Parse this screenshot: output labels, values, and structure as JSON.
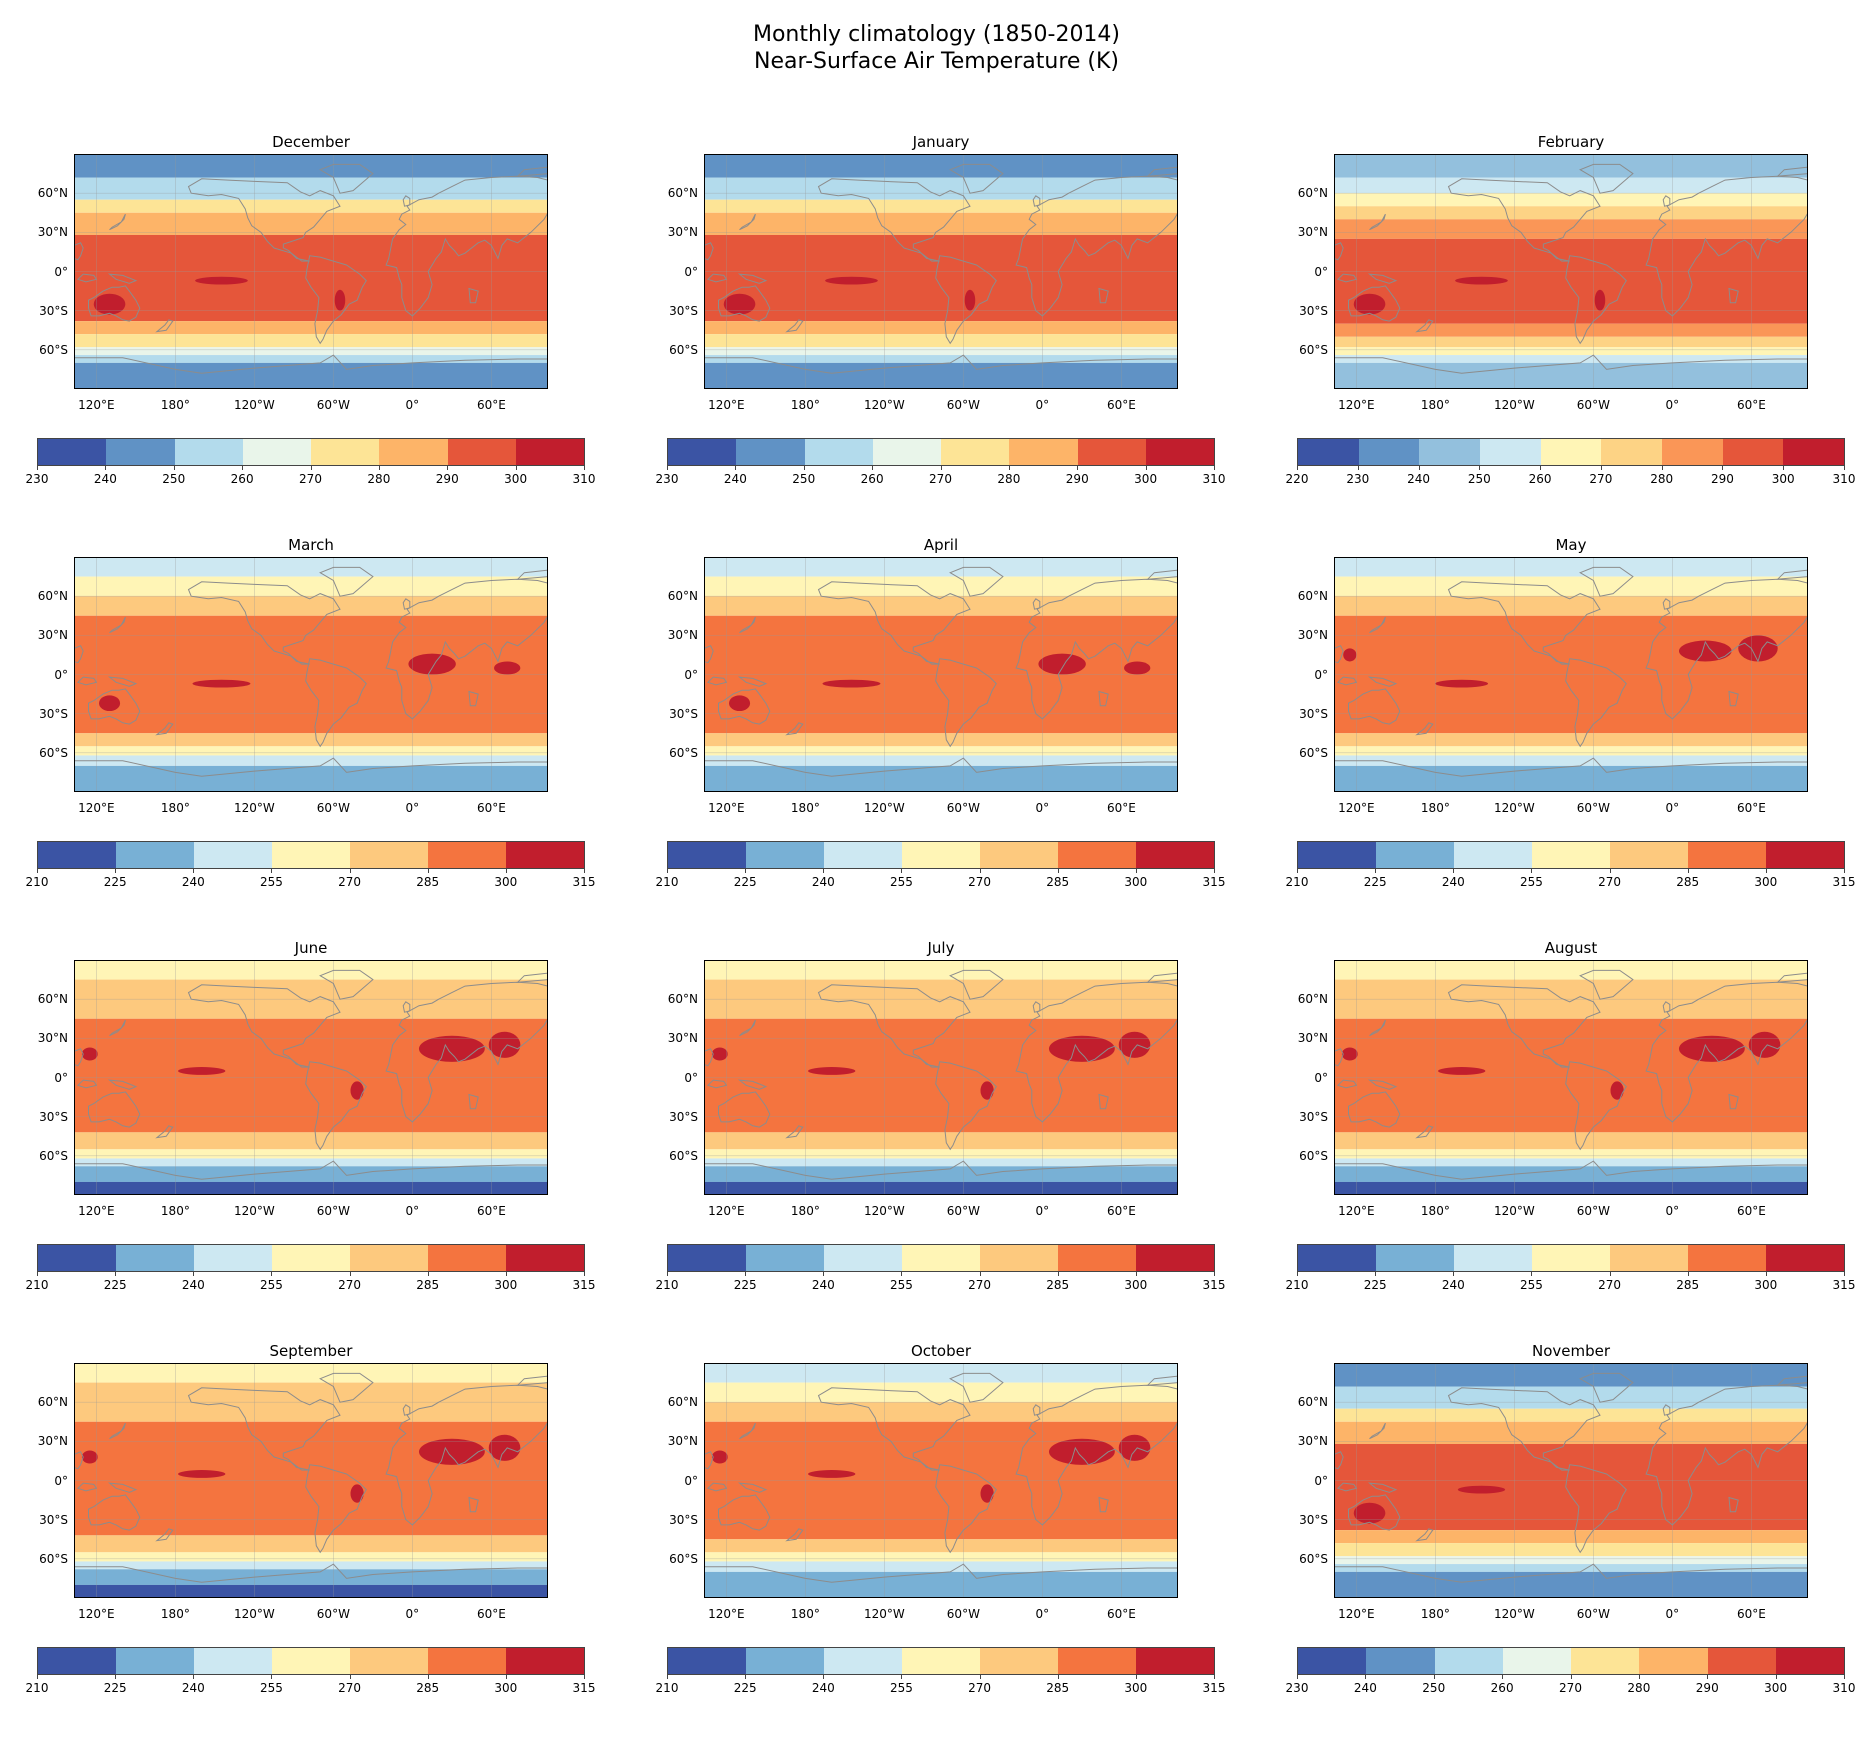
{
  "figure": {
    "title_line_1": "Monthly climatology (1850-2014)",
    "title_line_2": "Near-Surface Air Temperature (K)"
  },
  "axes": {
    "lat_ticks": [
      "60°N",
      "30°N",
      "0°",
      "30°S",
      "60°S"
    ],
    "lat_values": [
      60,
      30,
      0,
      -30,
      -60
    ],
    "lon_ticks": [
      "120°E",
      "180°",
      "120°W",
      "60°W",
      "0°",
      "60°E"
    ],
    "lon_values": [
      120,
      180,
      240,
      300,
      360,
      420
    ],
    "lon_range": [
      103,
      463
    ],
    "lat_range": [
      -90,
      90
    ]
  },
  "colors": {
    "c220": "#3b54a4",
    "c230": "#6092c5",
    "c240": "#93c0dd",
    "c250": "#cde8f2",
    "c260": "#fff5b6",
    "c270": "#fdd385",
    "c280": "#fa9657",
    "c290": "#e5563a",
    "c300": "#c11e2d",
    "w230": "#3b54a4",
    "w240": "#6092c5",
    "w250": "#b3dbec",
    "w260": "#e9f5ea",
    "w270": "#fde496",
    "w280": "#fdb468",
    "w290": "#e5563a",
    "w300": "#c11e2d",
    "s210": "#3b54a4",
    "s225": "#78b0d5",
    "s240": "#cde8f2",
    "s255": "#fff5b6",
    "s270": "#fdc97e",
    "s285": "#f4743f",
    "s300": "#c11e2d",
    "coast": "#8c8c8c"
  },
  "panels": [
    {
      "title": "December",
      "scale": "w",
      "ticks": [
        "230",
        "240",
        "250",
        "260",
        "270",
        "280",
        "290",
        "300",
        "310"
      ]
    },
    {
      "title": "January",
      "scale": "w",
      "ticks": [
        "230",
        "240",
        "250",
        "260",
        "270",
        "280",
        "290",
        "300",
        "310"
      ]
    },
    {
      "title": "February",
      "scale": "c",
      "ticks": [
        "220",
        "230",
        "240",
        "250",
        "260",
        "270",
        "280",
        "290",
        "300",
        "310"
      ]
    },
    {
      "title": "March",
      "scale": "s",
      "ticks": [
        "210",
        "225",
        "240",
        "255",
        "270",
        "285",
        "300",
        "315"
      ]
    },
    {
      "title": "April",
      "scale": "s",
      "ticks": [
        "210",
        "225",
        "240",
        "255",
        "270",
        "285",
        "300",
        "315"
      ]
    },
    {
      "title": "May",
      "scale": "s",
      "ticks": [
        "210",
        "225",
        "240",
        "255",
        "270",
        "285",
        "300",
        "315"
      ]
    },
    {
      "title": "June",
      "scale": "s",
      "ticks": [
        "210",
        "225",
        "240",
        "255",
        "270",
        "285",
        "300",
        "315"
      ]
    },
    {
      "title": "July",
      "scale": "s",
      "ticks": [
        "210",
        "225",
        "240",
        "255",
        "270",
        "285",
        "300",
        "315"
      ]
    },
    {
      "title": "August",
      "scale": "s",
      "ticks": [
        "210",
        "225",
        "240",
        "255",
        "270",
        "285",
        "300",
        "315"
      ]
    },
    {
      "title": "September",
      "scale": "s",
      "ticks": [
        "210",
        "225",
        "240",
        "255",
        "270",
        "285",
        "300",
        "315"
      ]
    },
    {
      "title": "October",
      "scale": "s",
      "ticks": [
        "210",
        "225",
        "240",
        "255",
        "270",
        "285",
        "300",
        "315"
      ]
    },
    {
      "title": "November",
      "scale": "w",
      "ticks": [
        "230",
        "240",
        "250",
        "260",
        "270",
        "280",
        "290",
        "300",
        "310"
      ]
    }
  ]
}
